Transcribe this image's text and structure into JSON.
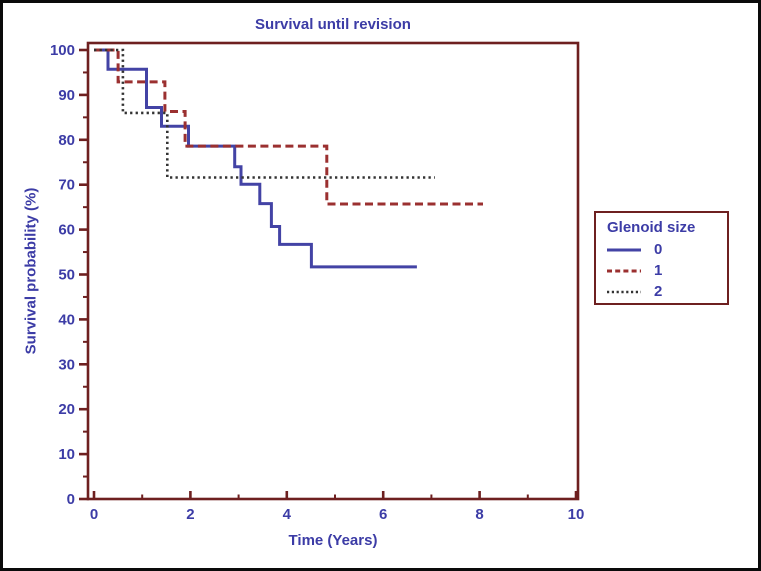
{
  "palette": {
    "frame_and_ticks": "#6e2020",
    "label_text": "#3c3ca6",
    "outer_border": "#0a0a0a",
    "background": "#ffffff",
    "series0_blue": "#4343a5",
    "series1_red": "#9b3030",
    "series2_black": "#333333"
  },
  "chart_data": {
    "type": "line",
    "subtype": "kaplan-meier-step",
    "title": "Survival until revision",
    "xlabel": "Time (Years)",
    "ylabel": "Survival probability (%)",
    "xlim": [
      0,
      10
    ],
    "ylim": [
      0,
      100
    ],
    "grid": false,
    "x_major_ticks": [
      0,
      2,
      4,
      6,
      8,
      10
    ],
    "x_major_tick_labels": [
      "0",
      "2",
      "4",
      "6",
      "8",
      "10"
    ],
    "x_minor_ticks": [
      1,
      3,
      5,
      7,
      9
    ],
    "y_major_ticks": [
      0,
      10,
      20,
      30,
      40,
      50,
      60,
      70,
      80,
      90,
      100
    ],
    "y_major_tick_labels": [
      "0",
      "10",
      "20",
      "30",
      "40",
      "50",
      "60",
      "70",
      "80",
      "90",
      "100"
    ],
    "y_minor_ticks": [
      5,
      15,
      25,
      35,
      45,
      55,
      65,
      75,
      85,
      95
    ],
    "legend_title": "Glenoid size",
    "legend_position": "right-outside",
    "series": [
      {
        "name": "0",
        "line_style": "solid",
        "color": "#4343a5",
        "points": [
          [
            0,
            100
          ],
          [
            0.29,
            100
          ],
          [
            0.29,
            95.7
          ],
          [
            1.09,
            95.7
          ],
          [
            1.09,
            87.2
          ],
          [
            1.4,
            87.2
          ],
          [
            1.4,
            83.0
          ],
          [
            1.96,
            83.0
          ],
          [
            1.96,
            78.6
          ],
          [
            2.92,
            78.6
          ],
          [
            2.92,
            74.0
          ],
          [
            3.05,
            74.0
          ],
          [
            3.05,
            70.1
          ],
          [
            3.44,
            70.1
          ],
          [
            3.44,
            65.8
          ],
          [
            3.68,
            65.8
          ],
          [
            3.68,
            60.7
          ],
          [
            3.85,
            60.7
          ],
          [
            3.85,
            56.7
          ],
          [
            4.51,
            56.7
          ],
          [
            4.51,
            51.7
          ],
          [
            6.7,
            51.7
          ]
        ]
      },
      {
        "name": "1",
        "line_style": "dashed",
        "color": "#9b3030",
        "points": [
          [
            0,
            100
          ],
          [
            0.5,
            100
          ],
          [
            0.5,
            92.9
          ],
          [
            1.47,
            92.9
          ],
          [
            1.47,
            86.3
          ],
          [
            1.89,
            86.3
          ],
          [
            1.89,
            78.6
          ],
          [
            4.83,
            78.6
          ],
          [
            4.83,
            65.7
          ],
          [
            8.07,
            65.7
          ]
        ]
      },
      {
        "name": "2",
        "line_style": "dotted",
        "color": "#333333",
        "points": [
          [
            0,
            100
          ],
          [
            0.6,
            100
          ],
          [
            0.6,
            86.0
          ],
          [
            1.52,
            86.0
          ],
          [
            1.52,
            71.6
          ],
          [
            7.07,
            71.6
          ]
        ]
      }
    ]
  }
}
